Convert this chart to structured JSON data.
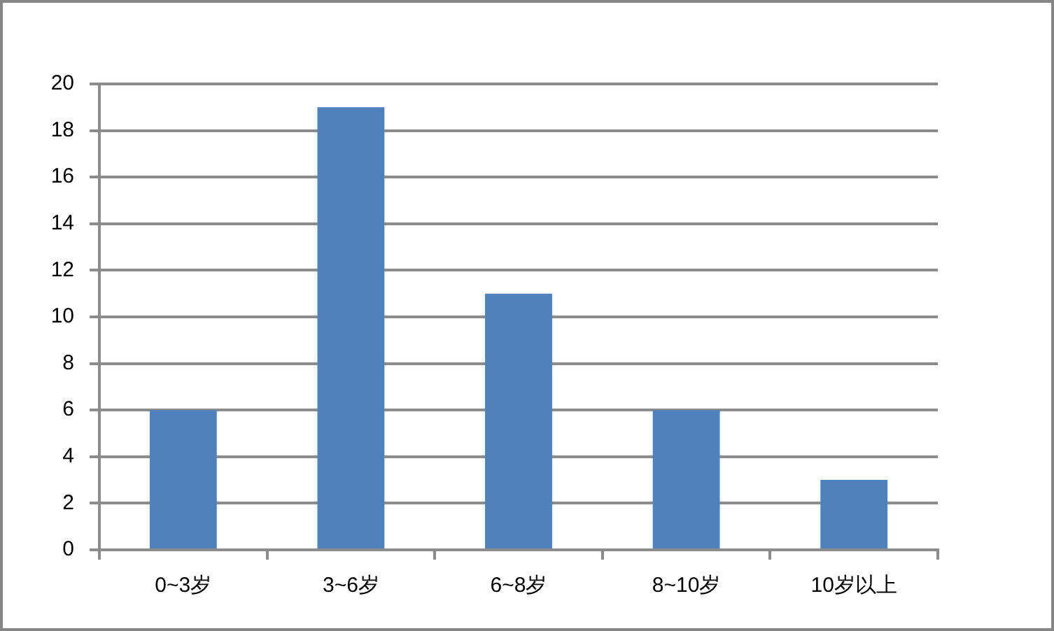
{
  "chart_data": {
    "type": "bar",
    "categories": [
      "0~3岁",
      "3~6岁",
      "6~8岁",
      "8~10岁",
      "10岁以上"
    ],
    "values": [
      6,
      19,
      11,
      6,
      3
    ],
    "color": "#4f81bd",
    "ylim": [
      0,
      20
    ],
    "yticks": [
      0,
      2,
      4,
      6,
      8,
      10,
      12,
      14,
      16,
      18,
      20
    ],
    "grid": "y"
  }
}
